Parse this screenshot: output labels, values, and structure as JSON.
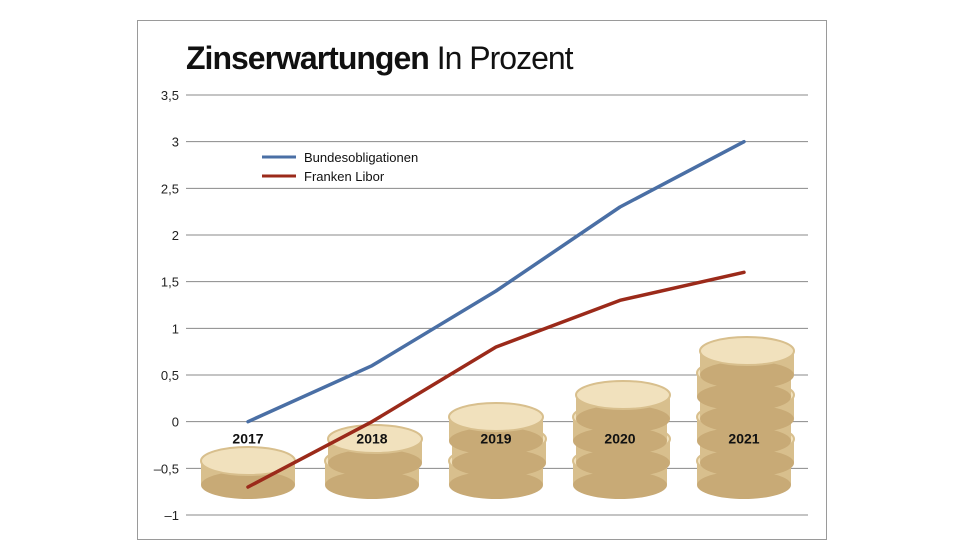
{
  "chart_data": {
    "type": "line",
    "title": "Zinserwartungen",
    "subtitle": "In Prozent",
    "xlabel": "",
    "ylabel": "",
    "categories": [
      "2017",
      "2018",
      "2019",
      "2020",
      "2021"
    ],
    "ylim": [
      -1,
      3.5
    ],
    "yticks": [
      -1,
      -0.5,
      0,
      0.5,
      1,
      1.5,
      2,
      2.5,
      3,
      3.5
    ],
    "ytick_labels": [
      "–1",
      "–0,5",
      "0",
      "0,5",
      "1",
      "1,5",
      "2",
      "2,5",
      "3",
      "3,5"
    ],
    "grid": true,
    "legend_position": "top-left",
    "series": [
      {
        "name": "Bundesobligationen",
        "color": "#4a6fa5",
        "values": [
          0,
          0.6,
          1.4,
          2.3,
          3.0
        ]
      },
      {
        "name": "Franken Libor",
        "color": "#9b2a1a",
        "values": [
          -0.7,
          0,
          0.8,
          1.3,
          1.6
        ]
      }
    ],
    "coin_stacks": [
      1,
      2,
      3,
      4,
      6
    ],
    "colors": {
      "grid": "#8a8a8a",
      "coin_face": "#f1e1bd",
      "coin_edge": "#d8bf8d",
      "coin_shadow": "#c8aa76"
    }
  }
}
